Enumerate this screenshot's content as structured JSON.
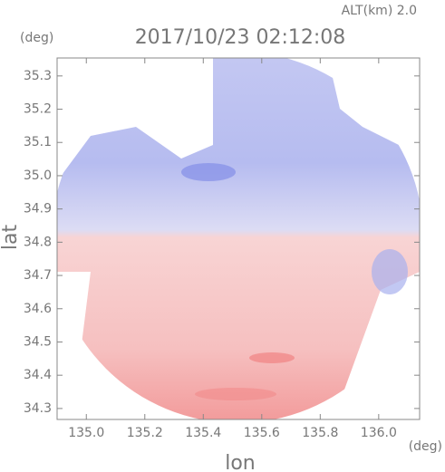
{
  "chart_data": {
    "type": "image",
    "title": "2017/10/23 02:12:08",
    "annotation": "ALT(km) 2.0",
    "x_label": "lon",
    "y_label": "lat",
    "x_unit": "(deg)",
    "y_unit": "(deg)",
    "xlim": [
      134.9,
      136.14
    ],
    "ylim": [
      34.267,
      35.354
    ],
    "xticks": [
      {
        "value": 135,
        "label": "135.0"
      },
      135.2,
      135.4,
      135.6,
      135.8,
      {
        "value": 136,
        "label": "136.0"
      }
    ],
    "yticks": [
      34.3,
      34.4,
      34.5,
      34.6,
      34.7,
      34.8,
      34.9,
      {
        "value": 35,
        "label": "35.0"
      },
      35.1,
      35.2,
      35.3
    ]
  }
}
